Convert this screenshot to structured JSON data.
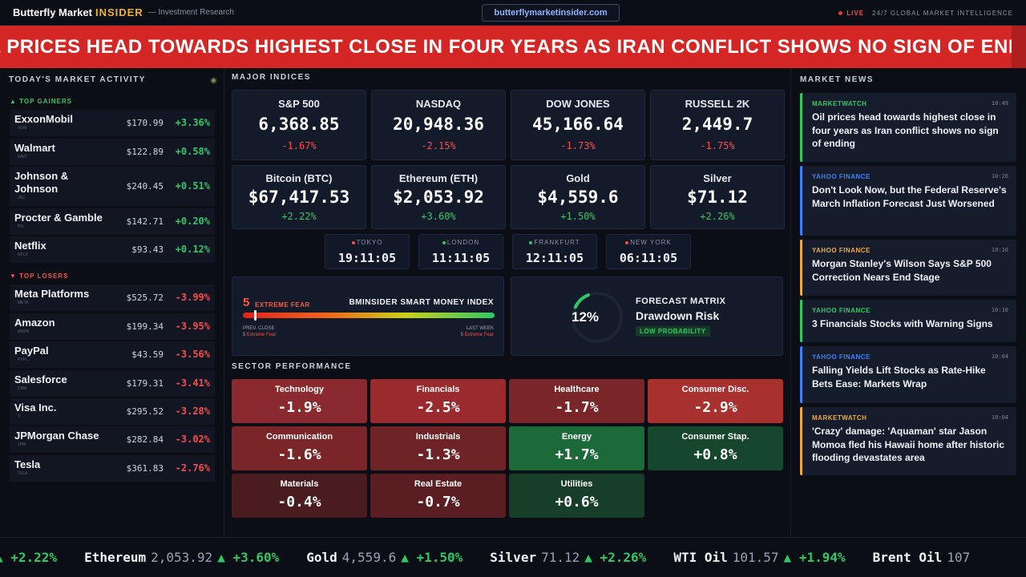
{
  "header": {
    "brand_main": "Butterfly Market",
    "brand_accent": "INSIDER",
    "brand_sub": "— Investment Research",
    "url": "butterflymarketinsider.com",
    "live_label": "LIVE",
    "tagline": "24/7 GLOBAL MARKET INTELLIGENCE"
  },
  "banner": {
    "headline": "OIL PRICES HEAD TOWARDS HIGHEST CLOSE IN FOUR YEARS AS IRAN CONFLICT SHOWS NO SIGN OF ENDING",
    "color": "#d52626"
  },
  "left": {
    "title": "TODAY'S MARKET ACTIVITY",
    "gainers_label": "▲ TOP GAINERS",
    "losers_label": "▼ TOP LOSERS",
    "gainers": [
      {
        "name": "ExxonMobil",
        "ticker": "XOM",
        "price": "$170.99",
        "change": "+3.36%"
      },
      {
        "name": "Walmart",
        "ticker": "WMT",
        "price": "$122.89",
        "change": "+0.58%"
      },
      {
        "name": "Johnson & Johnson",
        "ticker": "JNJ",
        "price": "$240.45",
        "change": "+0.51%"
      },
      {
        "name": "Procter & Gamble",
        "ticker": "PG",
        "price": "$142.71",
        "change": "+0.20%"
      },
      {
        "name": "Netflix",
        "ticker": "NFLX",
        "price": "$93.43",
        "change": "+0.12%"
      }
    ],
    "losers": [
      {
        "name": "Meta Platforms",
        "ticker": "META",
        "price": "$525.72",
        "change": "-3.99%"
      },
      {
        "name": "Amazon",
        "ticker": "AMZN",
        "price": "$199.34",
        "change": "-3.95%"
      },
      {
        "name": "PayPal",
        "ticker": "PYPL",
        "price": "$43.59",
        "change": "-3.56%"
      },
      {
        "name": "Salesforce",
        "ticker": "CRM",
        "price": "$179.31",
        "change": "-3.41%"
      },
      {
        "name": "Visa Inc.",
        "ticker": "V",
        "price": "$295.52",
        "change": "-3.28%"
      },
      {
        "name": "JPMorgan Chase",
        "ticker": "JPM",
        "price": "$282.84",
        "change": "-3.02%"
      },
      {
        "name": "Tesla",
        "ticker": "TSLA",
        "price": "$361.83",
        "change": "-2.76%"
      }
    ]
  },
  "indices": {
    "title": "MAJOR INDICES",
    "items": [
      {
        "label": "S&P 500",
        "value": "6,368.85",
        "change": "-1.67%",
        "dir": "down"
      },
      {
        "label": "NASDAQ",
        "value": "20,948.36",
        "change": "-2.15%",
        "dir": "down"
      },
      {
        "label": "DOW JONES",
        "value": "45,166.64",
        "change": "-1.73%",
        "dir": "down"
      },
      {
        "label": "RUSSELL 2K",
        "value": "2,449.7",
        "change": "-1.75%",
        "dir": "down"
      },
      {
        "label": "Bitcoin (BTC)",
        "value": "$67,417.53",
        "change": "+2.22%",
        "dir": "up"
      },
      {
        "label": "Ethereum (ETH)",
        "value": "$2,053.92",
        "change": "+3.60%",
        "dir": "up"
      },
      {
        "label": "Gold",
        "value": "$4,559.6",
        "change": "+1.50%",
        "dir": "up"
      },
      {
        "label": "Silver",
        "value": "$71.12",
        "change": "+2.26%",
        "dir": "up"
      }
    ]
  },
  "clocks": [
    {
      "city": "TOKYO",
      "time": "19:11:05",
      "dot": "#ff4a4a"
    },
    {
      "city": "LONDON",
      "time": "11:11:05",
      "dot": "#2fc866"
    },
    {
      "city": "FRANKFURT",
      "time": "12:11:05",
      "dot": "#2fc866"
    },
    {
      "city": "NEW YORK",
      "time": "06:11:05",
      "dot": "#ff4a4a"
    }
  ],
  "smart_money": {
    "value": "5",
    "label": "EXTREME FEAR",
    "title": "BMINSIDER SMART MONEY INDEX",
    "level_fraction": 0.05,
    "prev_close_label": "PREV. CLOSE",
    "prev_close_value": "5",
    "prev_close_desc": "Extreme Fear",
    "last_week_label": "LAST WEEK",
    "last_week_value": "5",
    "last_week_desc": "Extreme Fear"
  },
  "forecast": {
    "percent": "12%",
    "percent_value": 0.12,
    "label": "FORECAST MATRIX",
    "risk": "Drawdown Risk",
    "badge": "LOW PROBABILITY"
  },
  "sectors": {
    "title": "SECTOR PERFORMANCE",
    "items": [
      {
        "name": "Technology",
        "value": "-1.9%",
        "color": "#8a2a2e"
      },
      {
        "name": "Financials",
        "value": "-2.5%",
        "color": "#9a2a2e"
      },
      {
        "name": "Healthcare",
        "value": "-1.7%",
        "color": "#7a2628"
      },
      {
        "name": "Consumer Disc.",
        "value": "-2.9%",
        "color": "#a8302e"
      },
      {
        "name": "Communication",
        "value": "-1.6%",
        "color": "#7a2628"
      },
      {
        "name": "Industrials",
        "value": "-1.3%",
        "color": "#6e2426"
      },
      {
        "name": "Energy",
        "value": "+1.7%",
        "color": "#1c6a3a"
      },
      {
        "name": "Consumer Stap.",
        "value": "+0.8%",
        "color": "#16472c"
      },
      {
        "name": "Materials",
        "value": "-0.4%",
        "color": "#4a1c20"
      },
      {
        "name": "Real Estate",
        "value": "-0.7%",
        "color": "#5a1e22"
      },
      {
        "name": "Utilities",
        "value": "+0.6%",
        "color": "#173f28"
      }
    ]
  },
  "news": {
    "title": "MARKET NEWS",
    "items": [
      {
        "source": "MARKETWATCH",
        "time": "10:49",
        "headline": "Oil prices head towards highest close in four years as Iran conflict shows no sign of ending",
        "color": "#2fc866"
      },
      {
        "source": "YAHOO FINANCE",
        "time": "10:26",
        "headline": "Don't Look Now, but the Federal Reserve's March Inflation Forecast Just Worsened",
        "color": "#3b82f6"
      },
      {
        "source": "YAHOO FINANCE",
        "time": "10:10",
        "headline": "Morgan Stanley's Wilson Says S&P 500 Correction Nears End Stage",
        "color": "#f0a93a"
      },
      {
        "source": "YAHOO FINANCE",
        "time": "10:10",
        "headline": "3 Financials Stocks with Warning Signs",
        "color": "#2fc866"
      },
      {
        "source": "YAHOO FINANCE",
        "time": "10:04",
        "headline": "Falling Yields Lift Stocks as Rate-Hike Bets Ease: Markets Wrap",
        "color": "#3b82f6"
      },
      {
        "source": "MARKETWATCH",
        "time": "10:04",
        "headline": "'Crazy' damage: 'Aquaman' star Jason Momoa fled his Hawaii home after historic flooding devastates area",
        "color": "#f0a93a"
      }
    ]
  },
  "ticker": {
    "lead_change": "▲ +2.22%",
    "items": [
      {
        "name": "Ethereum",
        "price": "2,053.92",
        "change": "▲ +3.60%"
      },
      {
        "name": "Gold",
        "price": "4,559.6",
        "change": "▲ +1.50%"
      },
      {
        "name": "Silver",
        "price": "71.12",
        "change": "▲ +2.26%"
      },
      {
        "name": "WTI Oil",
        "price": "101.57",
        "change": "▲ +1.94%"
      },
      {
        "name": "Brent Oil",
        "price": "107",
        "change": ""
      }
    ]
  }
}
